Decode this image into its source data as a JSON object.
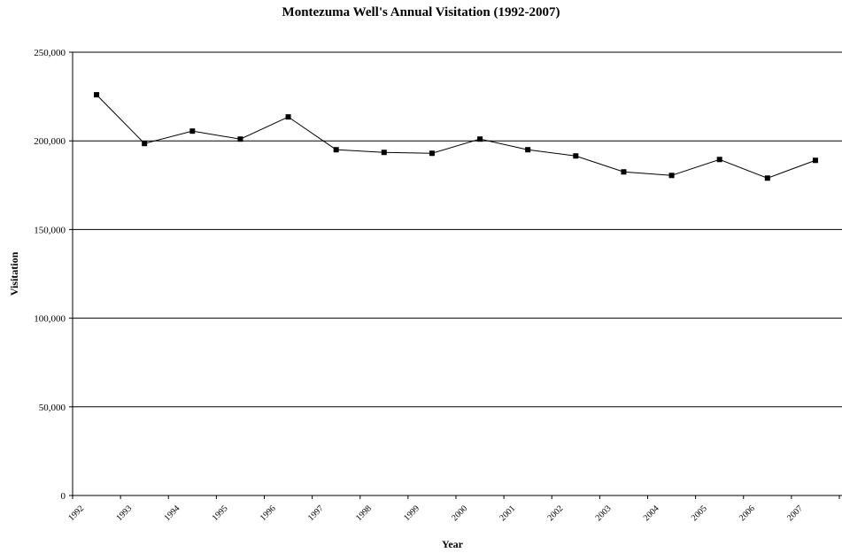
{
  "chart_data": {
    "type": "line",
    "title": "Montezuma Well's Annual Visitation (1992-2007)",
    "xlabel": "Year",
    "ylabel": "Visitation",
    "categories": [
      "1992",
      "1993",
      "1994",
      "1995",
      "1996",
      "1997",
      "1998",
      "1999",
      "2000",
      "2001",
      "2002",
      "2003",
      "2004",
      "2005",
      "2006",
      "2007"
    ],
    "series": [
      {
        "values": [
          226000,
          198500,
          205500,
          201000,
          213500,
          195000,
          193500,
          193000,
          201000,
          195000,
          191500,
          182500,
          180500,
          189500,
          179000,
          189000
        ]
      }
    ],
    "y_ticks": [
      "0",
      "50,000",
      "100,000",
      "150,000",
      "200,000",
      "250,000"
    ],
    "ylim": [
      0,
      250000
    ],
    "grid": "horizontal",
    "legend": "none",
    "colors": {
      "line": "#000000",
      "marker": "#000000",
      "grid": "#000000"
    },
    "marker": "square"
  }
}
